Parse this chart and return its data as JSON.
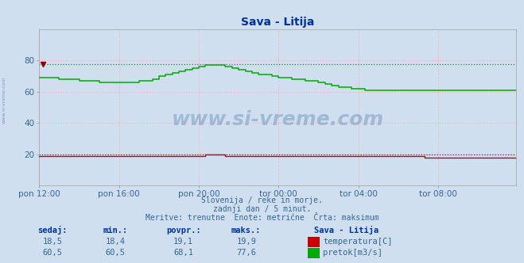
{
  "title": "Sava - Litija",
  "background_color": "#d0dff0",
  "plot_bg_color": "#d0dff0",
  "ylim": [
    0,
    100
  ],
  "yticks": [
    20,
    40,
    60,
    80
  ],
  "xlim": [
    0,
    287
  ],
  "xtick_labels": [
    "pon 12:00",
    "pon 16:00",
    "pon 20:00",
    "tor 00:00",
    "tor 04:00",
    "tor 08:00"
  ],
  "xtick_positions": [
    0,
    48,
    96,
    144,
    192,
    240
  ],
  "temp_color": "#cc0000",
  "flow_color": "#00aa00",
  "flow_max": 77.6,
  "temp_max": 19.9,
  "watermark": "www.si-vreme.com",
  "subtitle1": "Slovenija / reke in morje.",
  "subtitle2": "zadnji dan / 5 minut.",
  "subtitle3": "Meritve: trenutne  Enote: metrične  Črta: maksimum",
  "legend_title": "Sava - Litija",
  "legend_temp_label": "temperatura[C]",
  "legend_flow_label": "pretok[m3/s]",
  "table_headers": [
    "sedaj:",
    "min.:",
    "povpr.:",
    "maks.:"
  ],
  "temp_row": [
    "18,5",
    "18,4",
    "19,1",
    "19,9"
  ],
  "flow_row": [
    "60,5",
    "60,5",
    "68,1",
    "77,6"
  ],
  "flow_data": [
    69,
    69,
    69,
    69,
    69,
    69,
    69,
    69,
    69,
    69,
    69,
    69,
    68,
    68,
    68,
    68,
    68,
    68,
    68,
    68,
    68,
    68,
    68,
    68,
    67,
    67,
    67,
    67,
    67,
    67,
    67,
    67,
    67,
    67,
    67,
    67,
    66,
    66,
    66,
    66,
    66,
    66,
    66,
    66,
    66,
    66,
    66,
    66,
    66,
    66,
    66,
    66,
    66,
    66,
    66,
    66,
    66,
    66,
    66,
    66,
    67,
    67,
    67,
    67,
    67,
    67,
    67,
    67,
    68,
    68,
    68,
    68,
    70,
    70,
    70,
    70,
    71,
    71,
    71,
    71,
    72,
    72,
    72,
    72,
    73,
    73,
    73,
    73,
    74,
    74,
    74,
    74,
    75,
    75,
    75,
    75,
    76,
    76,
    76,
    76,
    77,
    77,
    77,
    77,
    77,
    77,
    77,
    77,
    77,
    77,
    77,
    77,
    76,
    76,
    76,
    76,
    75,
    75,
    75,
    75,
    74,
    74,
    74,
    74,
    73,
    73,
    73,
    73,
    72,
    72,
    72,
    72,
    71,
    71,
    71,
    71,
    71,
    71,
    71,
    71,
    70,
    70,
    70,
    70,
    69,
    69,
    69,
    69,
    69,
    69,
    69,
    69,
    68,
    68,
    68,
    68,
    68,
    68,
    68,
    68,
    67,
    67,
    67,
    67,
    67,
    67,
    67,
    67,
    66,
    66,
    66,
    66,
    65,
    65,
    65,
    65,
    64,
    64,
    64,
    64,
    63,
    63,
    63,
    63,
    63,
    63,
    63,
    63,
    62,
    62,
    62,
    62,
    62,
    62,
    62,
    62,
    61,
    61,
    61,
    61,
    61,
    61,
    61,
    61,
    61,
    61,
    61,
    61,
    61,
    61,
    61,
    61,
    61,
    61,
    61,
    61,
    61,
    61,
    61,
    61,
    61,
    61,
    61,
    61,
    61,
    61,
    61,
    61,
    61,
    61,
    61,
    61,
    61,
    61,
    61,
    61,
    61,
    61,
    61,
    61,
    61,
    61,
    61,
    61,
    61,
    61,
    61,
    61,
    61,
    61,
    61,
    61,
    61,
    61,
    61,
    61,
    61,
    61,
    61,
    61,
    61,
    61,
    61,
    61,
    61,
    61,
    61,
    61,
    61,
    61,
    61,
    61,
    61,
    61,
    61,
    61,
    61,
    61,
    61,
    61,
    61,
    61,
    61,
    61,
    61,
    61,
    61,
    61
  ],
  "temp_data": [
    19,
    19,
    19,
    19,
    19,
    19,
    19,
    19,
    19,
    19,
    19,
    19,
    19,
    19,
    19,
    19,
    19,
    19,
    19,
    19,
    19,
    19,
    19,
    19,
    19,
    19,
    19,
    19,
    19,
    19,
    19,
    19,
    19,
    19,
    19,
    19,
    19,
    19,
    19,
    19,
    19,
    19,
    19,
    19,
    19,
    19,
    19,
    19,
    19,
    19,
    19,
    19,
    19,
    19,
    19,
    19,
    19,
    19,
    19,
    19,
    19,
    19,
    19,
    19,
    19,
    19,
    19,
    19,
    19,
    19,
    19,
    19,
    19,
    19,
    19,
    19,
    19,
    19,
    19,
    19,
    19,
    19,
    19,
    19,
    19,
    19,
    19,
    19,
    19,
    19,
    19,
    19,
    19,
    19,
    19,
    19,
    19,
    19,
    19,
    19,
    20,
    20,
    20,
    20,
    20,
    20,
    20,
    20,
    20,
    20,
    20,
    20,
    19,
    19,
    19,
    19,
    19,
    19,
    19,
    19,
    19,
    19,
    19,
    19,
    19,
    19,
    19,
    19,
    19,
    19,
    19,
    19,
    19,
    19,
    19,
    19,
    19,
    19,
    19,
    19,
    19,
    19,
    19,
    19,
    19,
    19,
    19,
    19,
    19,
    19,
    19,
    19,
    19,
    19,
    19,
    19,
    19,
    19,
    19,
    19,
    19,
    19,
    19,
    19,
    19,
    19,
    19,
    19,
    19,
    19,
    19,
    19,
    19,
    19,
    19,
    19,
    19,
    19,
    19,
    19,
    19,
    19,
    19,
    19,
    19,
    19,
    19,
    19,
    19,
    19,
    19,
    19,
    19,
    19,
    19,
    19,
    19,
    19,
    19,
    19,
    19,
    19,
    19,
    19,
    19,
    19,
    19,
    19,
    19,
    19,
    19,
    19,
    19,
    19,
    19,
    19,
    19,
    19,
    19,
    19,
    19,
    19,
    19,
    19,
    19,
    19,
    19,
    19,
    19,
    19,
    19,
    19,
    18,
    18,
    18,
    18,
    18,
    18,
    18,
    18,
    18,
    18,
    18,
    18,
    18,
    18,
    18,
    18,
    18,
    18,
    18,
    18,
    18,
    18,
    18,
    18,
    18,
    18,
    18,
    18,
    18,
    18,
    18,
    18,
    18,
    18,
    18,
    18,
    18,
    18,
    18,
    18,
    18,
    18,
    18,
    18,
    18,
    18,
    18,
    18,
    18,
    18,
    18,
    18,
    18,
    18,
    18,
    18
  ]
}
